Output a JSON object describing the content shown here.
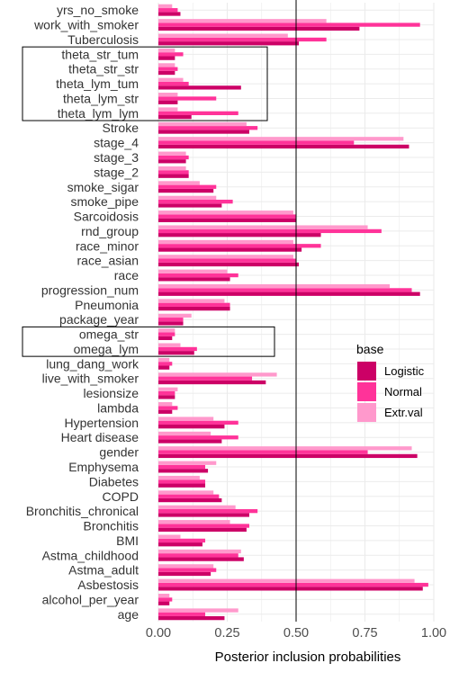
{
  "chart_data": {
    "type": "bar",
    "orientation": "horizontal",
    "xlabel": "Posterior inclusion probabilities",
    "ylabel": "",
    "xlim": [
      0,
      1
    ],
    "xticks": [
      "0.00",
      "0.25",
      "0.50",
      "0.75",
      "1.00"
    ],
    "reference_line": 0.5,
    "grid": true,
    "legend": {
      "title": "base",
      "position": "right",
      "entries": [
        "Logistic",
        "Normal",
        "Extr.val"
      ],
      "colors": [
        "#cc0066",
        "#ff3399",
        "#ff99cc"
      ]
    },
    "highlight_boxes": [
      [
        "theta_str_tum",
        "theta_str_str",
        "theta_lym_tum",
        "theta_lym_str",
        "theta_lym_lym"
      ],
      [
        "omega_str",
        "omega_lym"
      ]
    ],
    "categories": [
      "yrs_no_smoke",
      "work_with_smoker",
      "Tuberculosis",
      "theta_str_tum",
      "theta_str_str",
      "theta_lym_tum",
      "theta_lym_str",
      "theta_lym_lym",
      "Stroke",
      "stage_4",
      "stage_3",
      "stage_2",
      "smoke_sigar",
      "smoke_pipe",
      "Sarcoidosis",
      "rnd_group",
      "race_minor",
      "race_asian",
      "race",
      "progression_num",
      "Pneumonia",
      "package_year",
      "omega_str",
      "omega_lym",
      "lung_dang_work",
      "live_with_smoker",
      "lesionsize",
      "lambda",
      "Hypertension",
      "Heart disease",
      "gender",
      "Emphysema",
      "Diabetes",
      "COPD",
      "Bronchitis_chronical",
      "Bronchitis",
      "BMI",
      "Astma_childhood",
      "Astma_adult",
      "Asbestosis",
      "alcohol_per_year",
      "age"
    ],
    "series": [
      {
        "name": "Logistic",
        "color": "#cc0066",
        "values": [
          0.08,
          0.73,
          0.51,
          0.06,
          0.06,
          0.3,
          0.07,
          0.12,
          0.33,
          0.91,
          0.1,
          0.11,
          0.2,
          0.23,
          0.5,
          0.59,
          0.52,
          0.51,
          0.26,
          0.95,
          0.26,
          0.09,
          0.05,
          0.13,
          0.04,
          0.39,
          0.06,
          0.05,
          0.24,
          0.23,
          0.94,
          0.18,
          0.17,
          0.23,
          0.33,
          0.32,
          0.16,
          0.31,
          0.19,
          0.96,
          0.04,
          0.24
        ]
      },
      {
        "name": "Normal",
        "color": "#ff3399",
        "values": [
          0.07,
          0.95,
          0.61,
          0.09,
          0.07,
          0.11,
          0.21,
          0.29,
          0.36,
          0.71,
          0.11,
          0.11,
          0.21,
          0.27,
          0.5,
          0.81,
          0.59,
          0.5,
          0.29,
          0.92,
          0.26,
          0.09,
          0.06,
          0.14,
          0.05,
          0.34,
          0.06,
          0.07,
          0.29,
          0.29,
          0.76,
          0.17,
          0.17,
          0.22,
          0.36,
          0.33,
          0.17,
          0.29,
          0.21,
          0.98,
          0.05,
          0.17
        ]
      },
      {
        "name": "Extr.val",
        "color": "#ff99cc",
        "values": [
          0.05,
          0.61,
          0.47,
          0.06,
          0.06,
          0.09,
          0.07,
          0.07,
          0.32,
          0.89,
          0.1,
          0.1,
          0.15,
          0.21,
          0.49,
          0.76,
          0.49,
          0.49,
          0.25,
          0.84,
          0.24,
          0.12,
          0.06,
          0.08,
          0.04,
          0.43,
          0.07,
          0.05,
          0.2,
          0.19,
          0.92,
          0.21,
          0.15,
          0.2,
          0.28,
          0.26,
          0.08,
          0.3,
          0.2,
          0.93,
          0.04,
          0.29
        ]
      }
    ]
  }
}
